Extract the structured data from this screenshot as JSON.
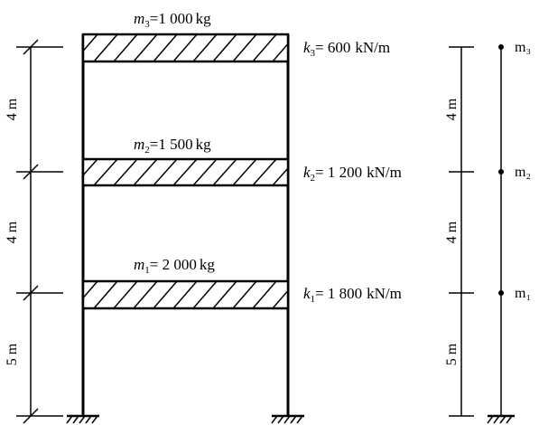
{
  "masses": [
    {
      "symbol": "m",
      "sub": "3",
      "value": "1 000",
      "unit": "kg"
    },
    {
      "symbol": "m",
      "sub": "2",
      "value": "1 500",
      "unit": "kg"
    },
    {
      "symbol": "m",
      "sub": "1",
      "value": "2 000",
      "unit": "kg"
    }
  ],
  "stiffness": [
    {
      "symbol": "k",
      "sub": "3",
      "value": "600",
      "unit": "kN/m"
    },
    {
      "symbol": "k",
      "sub": "2",
      "value": "1 200",
      "unit": "kN/m"
    },
    {
      "symbol": "k",
      "sub": "1",
      "value": "1 800",
      "unit": "kN/m"
    }
  ],
  "left_dimensions": [
    "4 m",
    "4 m",
    "5 m"
  ],
  "right_dimensions": [
    "4 m",
    "4 m",
    "5 m"
  ],
  "model_labels": [
    "m₃",
    "m₂",
    "m₁"
  ]
}
